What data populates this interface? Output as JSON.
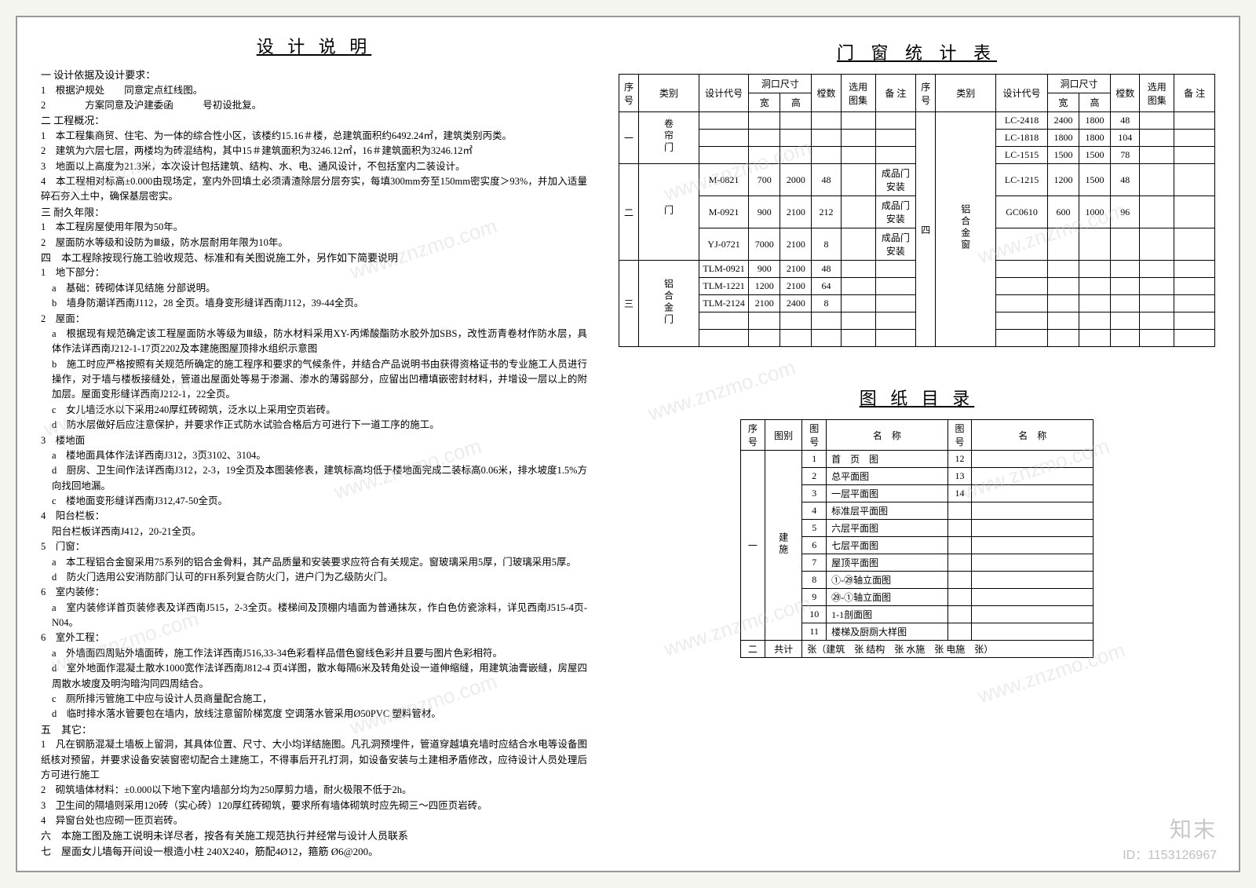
{
  "design_notes": {
    "title": "设 计 说 明",
    "s1_head": "一 设计依据及设计要求：",
    "s1_1": "1　根据沪规处　　同意定点红线图。",
    "s1_2": "2　　　　方案同意及沪建委函　　　号初设批复。",
    "s2_head": "二 工程概况：",
    "s2_1": "1　本工程集商贸、住宅、为一体的综合性小区，该楼约15.16＃楼，总建筑面积约6492.24㎡，建筑类别丙类。",
    "s2_2": "2　建筑为六层七层，两楼均为砖混结构，其中15＃建筑面积为3246.12㎡，16＃建筑面积为3246.12㎡",
    "s2_3": "3　地面以上高度为21.3米，本次设计包括建筑、结构、水、电、通风设计，不包括室内二装设计。",
    "s2_4": "4　本工程相对标高±0.000由现场定，室内外回填土必须清渣除层分层夯实，每填300mm夯至150mm密实度＞93%，并加入适量碎石夯入土中，确保基层密实。",
    "s3_head": "三 耐久年限：",
    "s3_1": "1　本工程房屋使用年限为50年。",
    "s3_2": "2　屋面防水等级和设防为Ⅲ级，防水层耐用年限为10年。",
    "s4_head": "四　本工程除按现行施工验收规范、标准和有关图说施工外，另作如下简要说明",
    "s4_1": "1　地下部分：",
    "s4_1a": "a　基础：砖砌体详见结施 分部说明。",
    "s4_1b": "b　墙身防潮详西南J112，28 全页。墙身变形缝详西南J112，39-44全页。",
    "s4_2": "2　屋面：",
    "s4_2a": "a　根据现有规范确定该工程屋面防水等级为Ⅲ级，防水材料采用XY-丙烯酸酯防水胶外加SBS，改性沥青卷材作防水层，具体作法详西南J212-1-17页2202及本建施图屋顶排水组织示意图",
    "s4_2b": "b　施工时应严格按照有关规范所确定的施工程序和要求的气候条件，并结合产品说明书由获得资格证书的专业施工人员进行操作，对于墙与楼板接缝处，管道出屋面处等易于渗漏、渗水的薄弱部分，应留出凹槽填嵌密封材料，并增设一层以上的附加层。屋面变形缝详西南J212-1，22全页。",
    "s4_2c": "c　女儿墙泛水以下采用240厚红砖砌筑，泛水以上采用空页岩砖。",
    "s4_2d": "d　防水层做好后应注意保护，并要求作正式防水试验合格后方可进行下一道工序的施工。",
    "s4_3": "3　楼地面",
    "s4_3a": "a　楼地面具体作法详西南J312，3页3102、3104。",
    "s4_3d": "d　厨房、卫生间作法详西南J312，2-3，19全页及本图装修表，建筑标高均低于楼地面完成二装标高0.06米，排水坡度1.5%方向找回地漏。",
    "s4_3c": "c　楼地面变形缝详西南J312,47-50全页。",
    "s4_4": "4　阳台栏板：",
    "s4_4a": "阳台栏板详西南J412，20-21全页。",
    "s4_5": "5　门窗：",
    "s4_5a": "a　本工程铝合金窗采用75系列的铝合金骨料，其产品质量和安装要求应符合有关规定。窗玻璃采用5厚，门玻璃采用5厚。",
    "s4_5d": "d　防火门选用公安消防部门认可的FH系列复合防火门，进户门为乙级防火门。",
    "s4_6": "6　室内装修：",
    "s4_6a": "a　室内装修详首页装修表及详西南J515，2-3全页。楼梯间及顶棚内墙面为普通抹灰，作白色仿瓷涂料，详见西南J515-4页-N04。",
    "s4_7": "6　室外工程：",
    "s4_7a": "a　外墙面四周贴外墙面砖，施工作法详西南J516,33-34色彩看样品借色窗线色彩并且要与图片色彩相符。",
    "s4_7d": "d　室外地面作混凝土散水1000宽作法详西南J812-4 页4详图，散水每隔6米及转角处设一道伸缩缝，用建筑油膏嵌缝，房屋四周散水坡度及明沟暗沟同四周结合。",
    "s4_7c": "c　厕所排污管施工中应与设计人员商量配合施工，",
    "s4_7d2": "d　临时排水落水管要包在墙内，放线注意留阶梯宽度 空调落水管采用Ø50PVC 塑料管材。",
    "s5_head": "五　其它：",
    "s5_1": "1　凡在钢筋混凝土墙板上留洞，其具体位置、尺寸、大小均详结施图。凡孔洞预埋件，管道穿越填充墙时应结合水电等设备图纸核对预留，并要求设备安装窗密切配合土建施工，不得事后开孔打洞，如设备安装与土建相矛盾修改，应待设计人员处理后方可进行施工",
    "s5_2": "2　砌筑墙体材料：±0.000以下地下室内墙部分均为250厚剪力墙，耐火极限不低于2h。",
    "s5_3": "3　卫生间的隔墙则采用120砖（实心砖）120厚红砖砌筑，要求所有墙体砌筑时应先砌三～四匝页岩砖。",
    "s5_4": "4　异窗台处也应砌一匝页岩砖。",
    "s6_head": "六　本施工图及施工说明未详尽者，按各有关施工规范执行并经常与设计人员联系",
    "s7_head": "七　屋面女儿墙每开间设一根造小柱 240X240，筋配4Ø12，箍筋 Ø6@200。"
  },
  "win_table": {
    "title": "门 窗 统 计 表",
    "headers": {
      "seq": "序号",
      "type": "类别",
      "code": "设计代号",
      "size": "洞口尺寸",
      "w": "宽",
      "h": "高",
      "qty": "樘数",
      "atlas": "选用图集",
      "note": "备 注"
    },
    "left_rows": [
      {
        "seq": "一",
        "type": "卷帘门",
        "items": [
          {},
          {},
          {}
        ]
      },
      {
        "seq": "二",
        "type": "门",
        "items": [
          {
            "code": "M-0821",
            "w": "700",
            "h": "2000",
            "qty": "48",
            "note": "成品门安装"
          },
          {
            "code": "M-0921",
            "w": "900",
            "h": "2100",
            "qty": "212",
            "note": "成品门安装"
          },
          {
            "code": "YJ-0721",
            "w": "7000",
            "h": "2100",
            "qty": "8",
            "note": "成品门安装"
          }
        ]
      },
      {
        "seq": "三",
        "type": "铝合金门",
        "items": [
          {
            "code": "TLM-0921",
            "w": "900",
            "h": "2100",
            "qty": "48"
          },
          {
            "code": "TLM-1221",
            "w": "1200",
            "h": "2100",
            "qty": "64"
          },
          {
            "code": "TLM-2124",
            "w": "2100",
            "h": "2400",
            "qty": "8"
          },
          {},
          {}
        ]
      }
    ],
    "right_rows": [
      {
        "seq": "四",
        "type": "铝合金窗",
        "items": [
          {
            "code": "LC-2418",
            "w": "2400",
            "h": "1800",
            "qty": "48"
          },
          {
            "code": "LC-1818",
            "w": "1800",
            "h": "1800",
            "qty": "104"
          },
          {
            "code": "LC-1515",
            "w": "1500",
            "h": "1500",
            "qty": "78"
          },
          {
            "code": "LC-1215",
            "w": "1200",
            "h": "1500",
            "qty": "48"
          },
          {
            "code": "GC0610",
            "w": "600",
            "h": "1000",
            "qty": "96"
          },
          {},
          {},
          {},
          {},
          {},
          {}
        ]
      }
    ]
  },
  "dwg_table": {
    "title": "图 纸 目 录",
    "headers": {
      "seq": "序号",
      "type": "图别",
      "dno1": "图号",
      "name1": "名　称",
      "dno2": "图号",
      "name2": "名　称"
    },
    "rows": [
      {
        "n": "1",
        "name": "首　页　图",
        "n2": "12"
      },
      {
        "n": "2",
        "name": "总平面图",
        "n2": "13"
      },
      {
        "n": "3",
        "name": "一层平面图",
        "n2": "14"
      },
      {
        "n": "4",
        "name": "标准层平面图"
      },
      {
        "n": "5",
        "name": "六层平面图"
      },
      {
        "n": "6",
        "name": "七层平面图"
      },
      {
        "n": "7",
        "name": "屋顶平面图"
      },
      {
        "n": "8",
        "name": "①-㉙轴立面图"
      },
      {
        "n": "9",
        "name": "㉙-①轴立面图"
      },
      {
        "n": "10",
        "name": "1-1剖面图"
      },
      {
        "n": "11",
        "name": "楼梯及厨厕大样图"
      }
    ],
    "type_label": "建施",
    "seq_label": "一",
    "summary_seq": "二",
    "summary_label": "共计",
    "summary_text": "张（建筑　张 结构　张 水施　张 电施　张）"
  },
  "footer": {
    "brand": "知末",
    "id": "ID：1153126967"
  },
  "watermark_text": "www.znzmo.com"
}
